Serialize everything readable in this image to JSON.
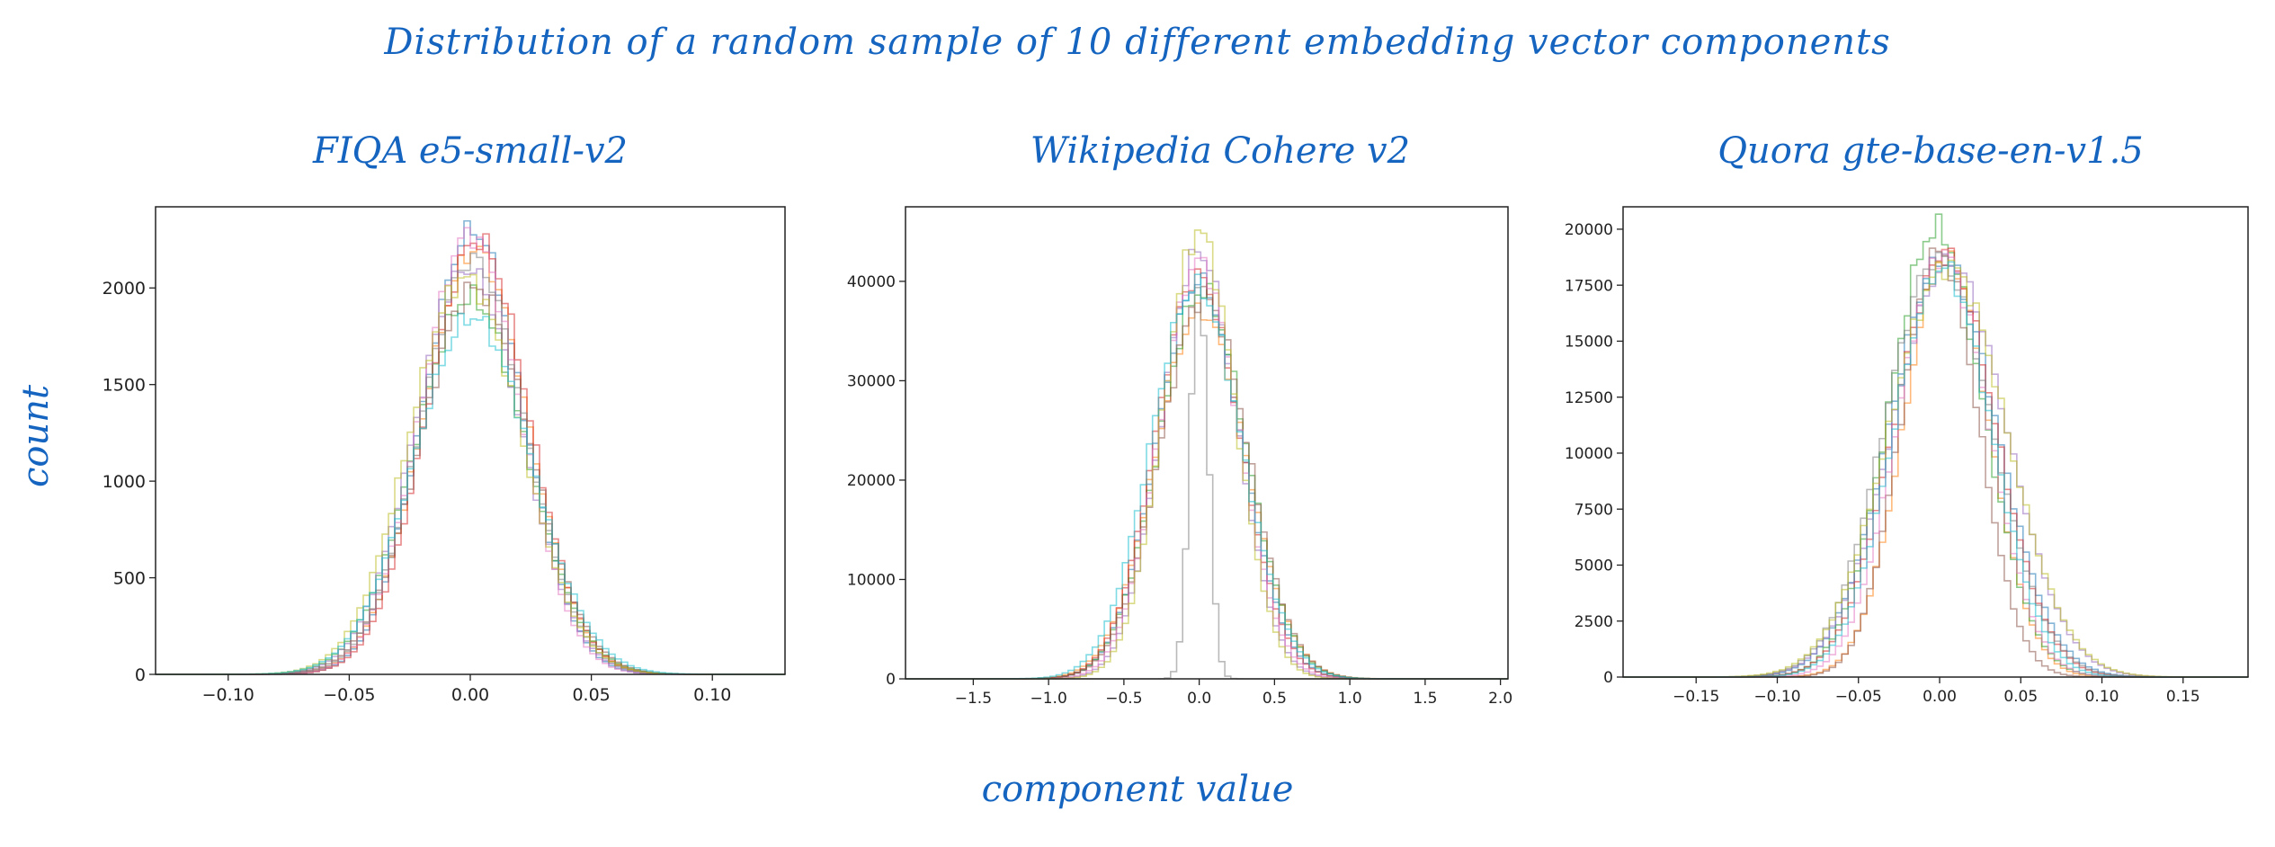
{
  "title": "Distribution of a random sample of 10 different embedding vector components",
  "xlabel": "component value",
  "ylabel": "count",
  "series_colors": [
    "#1f77b4",
    "#ff7f0e",
    "#2ca02c",
    "#d62728",
    "#9467bd",
    "#8c564b",
    "#e377c2",
    "#7f7f7f",
    "#bcbd22",
    "#17becf"
  ],
  "chart_data": [
    {
      "type": "histogram",
      "title": "FIQA e5-small-v2",
      "xlim": [
        -0.13,
        0.13
      ],
      "ylim": [
        0,
        2420
      ],
      "xticks": [
        -0.1,
        -0.05,
        0.0,
        0.05,
        0.1
      ],
      "xtick_labels": [
        "−0.10",
        "−0.05",
        "0.00",
        "0.05",
        "0.10"
      ],
      "yticks": [
        0,
        500,
        1000,
        1500,
        2000
      ],
      "ytick_labels": [
        "0",
        "500",
        "1000",
        "1500",
        "2000"
      ],
      "bins": 100,
      "bin_range": [
        -0.13,
        0.13
      ],
      "series": [
        {
          "mean": 0.001,
          "std": 0.0205,
          "peak": 2300
        },
        {
          "mean": 0.002,
          "std": 0.0215,
          "peak": 2200
        },
        {
          "mean": 0.0,
          "std": 0.023,
          "peak": 1950
        },
        {
          "mean": 0.003,
          "std": 0.021,
          "peak": 2250
        },
        {
          "mean": -0.001,
          "std": 0.022,
          "peak": 2100
        },
        {
          "mean": 0.002,
          "std": 0.0225,
          "peak": 2000
        },
        {
          "mean": 0.0,
          "std": 0.0205,
          "peak": 2280
        },
        {
          "mean": 0.001,
          "std": 0.0215,
          "peak": 2150
        },
        {
          "mean": -0.002,
          "std": 0.023,
          "peak": 2050
        },
        {
          "mean": 0.001,
          "std": 0.024,
          "peak": 1850
        }
      ]
    },
    {
      "type": "histogram",
      "title": "Wikipedia Cohere v2",
      "xlim": [
        -1.95,
        2.05
      ],
      "ylim": [
        0,
        47500
      ],
      "xticks": [
        -1.5,
        -1.0,
        -0.5,
        0.0,
        0.5,
        1.0,
        1.5,
        2.0
      ],
      "xtick_labels": [
        "−1.5",
        "−1.0",
        "−0.5",
        "0.0",
        "0.5",
        "1.0",
        "1.5",
        "2.0"
      ],
      "yticks": [
        0,
        10000,
        20000,
        30000,
        40000
      ],
      "ytick_labels": [
        "0",
        "10000",
        "20000",
        "30000",
        "40000"
      ],
      "bins": 100,
      "bin_range": [
        -1.95,
        2.05
      ],
      "series": [
        {
          "mean": 0.0,
          "std": 0.28,
          "peak": 40000
        },
        {
          "mean": 0.01,
          "std": 0.3,
          "peak": 37000
        },
        {
          "mean": 0.02,
          "std": 0.29,
          "peak": 39000
        },
        {
          "mean": -0.01,
          "std": 0.28,
          "peak": 40500
        },
        {
          "mean": 0.0,
          "std": 0.25,
          "peak": 43000
        },
        {
          "mean": 0.03,
          "std": 0.29,
          "peak": 38500
        },
        {
          "mean": 0.0,
          "std": 0.26,
          "peak": 42000
        },
        {
          "mean": 0.0,
          "std": 0.06,
          "peak": 40000
        },
        {
          "mean": 0.0,
          "std": 0.24,
          "peak": 45000
        },
        {
          "mean": -0.02,
          "std": 0.3,
          "peak": 39500
        }
      ]
    },
    {
      "type": "histogram",
      "title": "Quora gte-base-en-v1.5",
      "xlim": [
        -0.195,
        0.19
      ],
      "ylim": [
        0,
        21000
      ],
      "xticks": [
        -0.15,
        -0.1,
        -0.05,
        0.0,
        0.05,
        0.1,
        0.15
      ],
      "xtick_labels": [
        "−0.15",
        "−0.10",
        "−0.05",
        "0.00",
        "0.05",
        "0.10",
        "0.15"
      ],
      "yticks": [
        0,
        2500,
        5000,
        7500,
        10000,
        12500,
        15000,
        17500,
        20000
      ],
      "ytick_labels": [
        "0",
        "2500",
        "5000",
        "7500",
        "10000",
        "12500",
        "15000",
        "17500",
        "20000"
      ],
      "bins": 100,
      "bin_range": [
        -0.195,
        0.19
      ],
      "series": [
        {
          "mean": 0.002,
          "std": 0.033,
          "peak": 18600
        },
        {
          "mean": 0.004,
          "std": 0.026,
          "peak": 18900
        },
        {
          "mean": -0.002,
          "std": 0.029,
          "peak": 20000
        },
        {
          "mean": 0.003,
          "std": 0.031,
          "peak": 18800
        },
        {
          "mean": 0.006,
          "std": 0.035,
          "peak": 18500
        },
        {
          "mean": 0.0,
          "std": 0.024,
          "peak": 19000
        },
        {
          "mean": 0.002,
          "std": 0.028,
          "peak": 18900
        },
        {
          "mean": -0.001,
          "std": 0.033,
          "peak": 18700
        },
        {
          "mean": 0.005,
          "std": 0.036,
          "peak": 18400
        },
        {
          "mean": 0.002,
          "std": 0.03,
          "peak": 18300
        }
      ]
    }
  ]
}
